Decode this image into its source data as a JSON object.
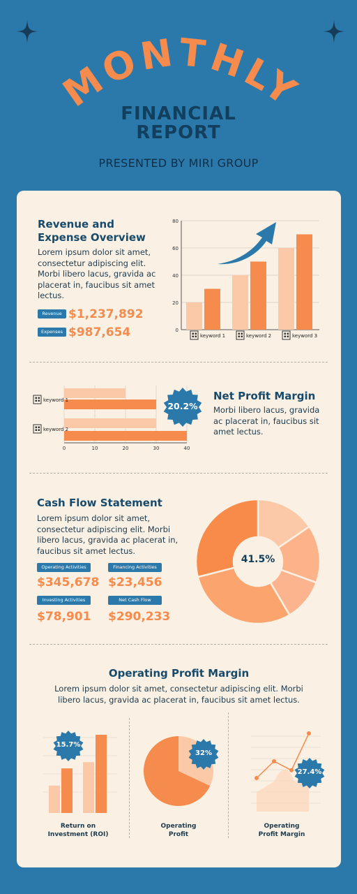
{
  "header": {
    "arc_title": "MONTHLY",
    "subtitle_line1": "FINANCIAL",
    "subtitle_line2": "REPORT",
    "presented_by": "PRESENTED BY MIRI GROUP"
  },
  "colors": {
    "background": "#2b79ab",
    "card": "#faf1e4",
    "orange": "#f58b4c",
    "peach": "#fcc9a8",
    "navy": "#174a6b"
  },
  "revenue_section": {
    "title_line1": "Revenue and",
    "title_line2": "Expense Overview",
    "body": "Lorem ipsum dolor sit amet, consectetur adipiscing elit. Morbi libero lacus, gravida ac placerat in, faucibus sit amet lectus.",
    "revenue_label": "Revenue",
    "revenue_value": "$1,237,892",
    "expenses_label": "Expenses",
    "expenses_value": "$987,654"
  },
  "net_profit": {
    "title": "Net Profit Margin",
    "body": "Morbi libero lacus, gravida ac placerat in, faucibus sit amet lectus.",
    "badge": "20.2%"
  },
  "cash_flow": {
    "title": "Cash Flow Statement",
    "body": "Lorem ipsum dolor sit amet, consectetur adipiscing elit. Morbi libero lacus, gravida ac placerat in, faucibus sit amet lectus.",
    "operating_label": "Operating Activities",
    "operating_value": "$345,678",
    "financing_label": "Financing Activities",
    "financing_value": "$23,456",
    "investing_label": "Investing Activities",
    "investing_value": "$78,901",
    "net_label": "Net Cash Flow",
    "net_value": "$290,233",
    "donut_label": "41.5%"
  },
  "operating_margin": {
    "title": "Operating Profit Margin",
    "body": "Lorem ipsum dolor sit amet, consectetur adipiscing elit. Morbi libero lacus, gravida ac placerat in, faucibus sit amet lectus.",
    "roi_badge": "15.7%",
    "roi_label_line1": "Return on",
    "roi_label_line2": "Investment (ROI)",
    "op_badge": "32%",
    "op_label_line1": "Operating",
    "op_label_line2": "Profit",
    "opm_badge": "27.4%",
    "opm_label_line1": "Operating",
    "opm_label_line2": "Profit Margin"
  },
  "chart_data": [
    {
      "type": "bar",
      "categories": [
        "keyword 1",
        "keyword 2",
        "keyword 3"
      ],
      "series": [
        {
          "values": [
            20,
            40,
            60
          ]
        },
        {
          "values": [
            30,
            50,
            70
          ]
        }
      ],
      "ylim": [
        0,
        80
      ],
      "yticks": [
        0,
        20,
        40,
        60,
        80
      ],
      "grid": true
    },
    {
      "type": "bar",
      "orientation": "horizontal",
      "categories": [
        "keyword 1",
        "keyword 2"
      ],
      "series": [
        {
          "values": [
            20,
            30
          ]
        },
        {
          "values": [
            30,
            40
          ]
        }
      ],
      "xlim": [
        0,
        40
      ],
      "xticks": [
        0,
        10,
        20,
        30,
        40
      ],
      "grid": true
    },
    {
      "type": "pie",
      "donut": true,
      "label": "41.5%",
      "slices": [
        {
          "value": 41.5,
          "color": "#fbb892"
        },
        {
          "value": 58.5,
          "color": "#fa9257"
        }
      ]
    },
    {
      "type": "bar",
      "label": "15.7%",
      "series": [
        {
          "values": [
            35,
            65
          ]
        },
        {
          "values": [
            57,
            100
          ]
        }
      ]
    },
    {
      "type": "pie",
      "label": "32%",
      "slices": [
        {
          "value": 32,
          "color": "#fcc9a8"
        },
        {
          "value": 68,
          "color": "#f58b4c"
        }
      ]
    },
    {
      "type": "line",
      "label": "27.4%",
      "x": [
        1,
        2,
        3,
        4
      ],
      "values": [
        30,
        45,
        37,
        70
      ]
    }
  ]
}
